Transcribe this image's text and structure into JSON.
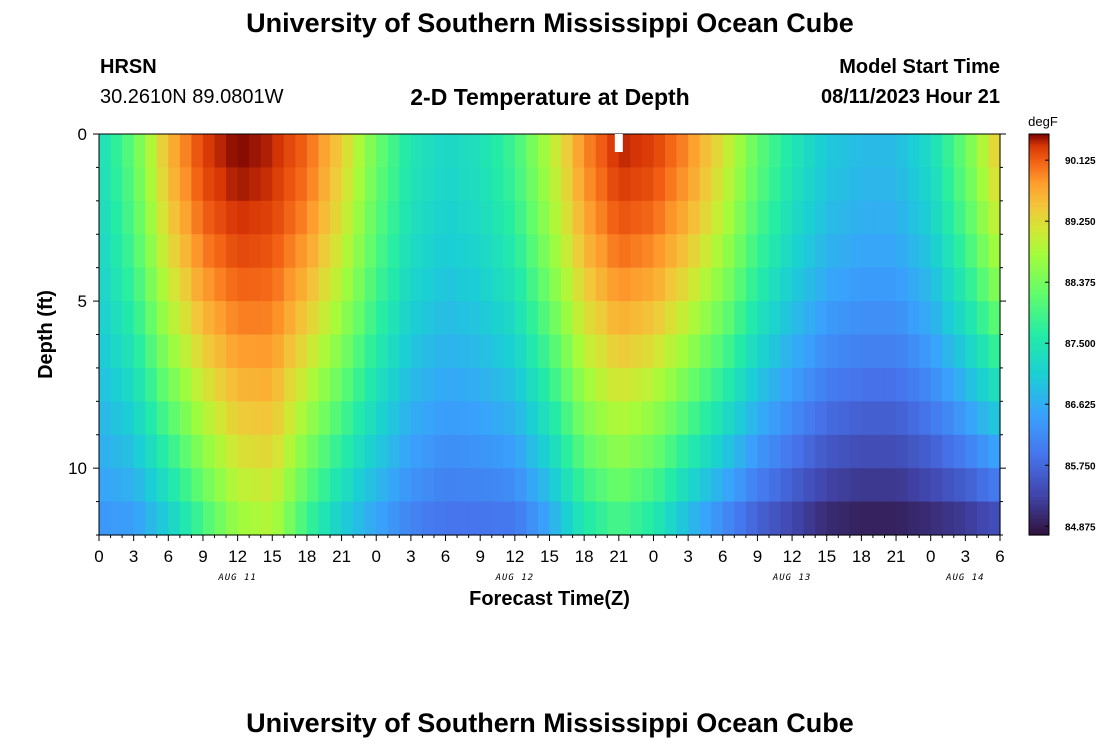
{
  "header": {
    "title": "University of Southern Mississippi Ocean Cube",
    "station": "HRSN",
    "coords": "30.2610N  89.0801W",
    "subtitle": "2-D Temperature at Depth",
    "model_start_label": "Model Start Time",
    "model_start_value": "08/11/2023 Hour 21"
  },
  "footer": {
    "title": "University of Southern Mississippi Ocean Cube"
  },
  "colors": {
    "background": "#ffffff",
    "marker": "#ffffff"
  },
  "chart_data": {
    "type": "heatmap",
    "title": "2-D Temperature at Depth",
    "xlabel": "Forecast Time(Z)",
    "ylabel": "Depth (ft)",
    "x_unit": "hours from Aug 11 00Z",
    "x_range": [
      0,
      78
    ],
    "y_range": [
      0,
      12
    ],
    "y_ticks": [
      0,
      5,
      10
    ],
    "x_tick_labels": [
      "0",
      "3",
      "6",
      "9",
      "12",
      "15",
      "18",
      "21",
      "0",
      "3",
      "6",
      "9",
      "12",
      "15",
      "18",
      "21",
      "0",
      "3",
      "6",
      "9",
      "12",
      "15",
      "18",
      "21",
      "0",
      "3",
      "6"
    ],
    "date_labels": [
      {
        "hour": 12,
        "text": "AUG 11"
      },
      {
        "hour": 36,
        "text": "AUG 12"
      },
      {
        "hour": 60,
        "text": "AUG 13"
      },
      {
        "hour": 75,
        "text": "AUG 14"
      }
    ],
    "model_start_hour": 45,
    "colorbar": {
      "unit": "degF",
      "min": 84.75,
      "max": 90.5,
      "tick_labels": [
        "90.125",
        "89.250",
        "88.375",
        "87.500",
        "86.625",
        "85.750",
        "84.875"
      ]
    },
    "depth_levels": [
      0,
      1,
      2,
      3,
      4,
      5,
      6,
      7,
      8,
      9,
      10,
      11,
      12
    ],
    "grid_time_step_hours": 1,
    "surface_profile": {
      "hours": [
        0,
        3,
        6,
        9,
        12,
        15,
        18,
        21,
        24,
        27,
        30,
        33,
        36,
        39,
        42,
        45,
        48,
        51,
        54,
        57,
        60,
        63,
        66,
        69,
        72,
        75,
        78
      ],
      "temps": [
        87.3,
        88.2,
        89.6,
        90.3,
        90.5,
        90.4,
        90.1,
        89.4,
        88.3,
        87.5,
        87.2,
        87.4,
        87.9,
        88.9,
        89.9,
        90.4,
        90.3,
        89.9,
        89.2,
        88.2,
        87.5,
        87.0,
        86.8,
        86.8,
        87.3,
        88.3,
        89.5
      ]
    },
    "deep_profile": {
      "hours": [
        0,
        3,
        6,
        9,
        12,
        15,
        18,
        21,
        24,
        27,
        30,
        33,
        36,
        39,
        42,
        45,
        48,
        51,
        54,
        57,
        60,
        63,
        66,
        69,
        72,
        75,
        78
      ],
      "temps": [
        86.3,
        86.3,
        86.9,
        87.8,
        88.6,
        88.8,
        87.7,
        86.9,
        86.4,
        86.0,
        85.8,
        85.8,
        85.8,
        86.4,
        87.4,
        87.8,
        87.4,
        86.6,
        86.0,
        85.5,
        85.2,
        84.9,
        84.8,
        84.8,
        84.9,
        85.0,
        85.2
      ]
    }
  }
}
